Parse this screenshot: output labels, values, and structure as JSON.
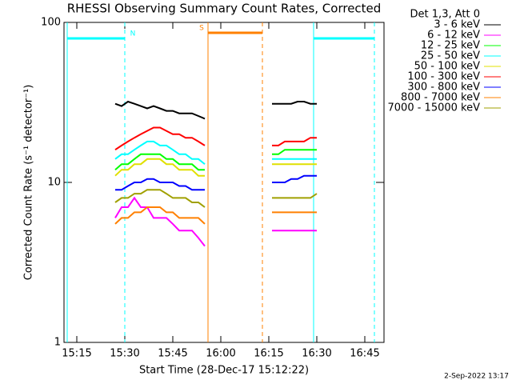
{
  "chart_data": {
    "type": "line",
    "title": "RHESSI Observing Summary Count Rates, Corrected",
    "xlabel": "Start Time (28-Dec-17 15:12:22)",
    "ylabel": "Corrected Count Rate (s⁻¹ detector⁻¹)",
    "legend_title": "Det 1,3, Att 0",
    "footnote": "2-Sep-2022 13:17",
    "log_y": true,
    "xlim": [
      "15:11",
      "16:51"
    ],
    "ylim": [
      1,
      100
    ],
    "xticks": [
      "15:15",
      "15:30",
      "15:45",
      "16:00",
      "16:15",
      "16:30",
      "16:45"
    ],
    "yticks": [
      1,
      10,
      100
    ],
    "intervals": [
      {
        "label": "N",
        "start": "15:12",
        "end": "15:30",
        "color": "#00ffff"
      },
      {
        "label": "S",
        "start": "15:56",
        "end": "16:13",
        "color": "#ff8000"
      },
      {
        "start": "16:29",
        "end": "16:48",
        "color": "#00ffff"
      }
    ],
    "x": [
      "15:27",
      "15:29",
      "15:31",
      "15:33",
      "15:35",
      "15:37",
      "15:39",
      "15:41",
      "15:43",
      "15:45",
      "15:47",
      "15:49",
      "15:51",
      "15:53",
      "15:55",
      "16:05",
      "16:16",
      "16:18",
      "16:20",
      "16:22",
      "16:24",
      "16:26",
      "16:28",
      "16:30"
    ],
    "series": [
      {
        "name": "3 - 6 keV",
        "color": "#000000",
        "values": [
          31,
          30,
          32,
          31,
          30,
          29,
          30,
          29,
          28,
          28,
          27,
          27,
          27,
          26,
          25,
          null,
          31,
          31,
          31,
          31,
          32,
          32,
          31,
          31
        ]
      },
      {
        "name": "6 - 12 keV",
        "color": "#ff00ff",
        "values": [
          6,
          7,
          7,
          8,
          7,
          7,
          6,
          6,
          6,
          5.5,
          5,
          5,
          5,
          4.5,
          4,
          null,
          5,
          5,
          5,
          5,
          5,
          5,
          5,
          5
        ]
      },
      {
        "name": "12 - 25 keV",
        "color": "#00ff00",
        "values": [
          12,
          13,
          13,
          14,
          15,
          15,
          15,
          15,
          14,
          14,
          13,
          13,
          13,
          12,
          12,
          null,
          15,
          15,
          16,
          16,
          16,
          16,
          16,
          16
        ]
      },
      {
        "name": "25 - 50 keV",
        "color": "#00ffff",
        "values": [
          14,
          15,
          15,
          16,
          17,
          18,
          18,
          17,
          17,
          16,
          15,
          15,
          14,
          14,
          13,
          null,
          14,
          14,
          14,
          14,
          14,
          14,
          14,
          14
        ]
      },
      {
        "name": "50 - 100 keV",
        "color": "#e0e000",
        "values": [
          11,
          12,
          12,
          13,
          13,
          14,
          14,
          14,
          13,
          13,
          12,
          12,
          12,
          11,
          11,
          null,
          13,
          13,
          13,
          13,
          13,
          13,
          13,
          13
        ]
      },
      {
        "name": "100 - 300 keV",
        "color": "#ff0000",
        "values": [
          16,
          17,
          18,
          19,
          20,
          21,
          22,
          22,
          21,
          20,
          20,
          19,
          19,
          18,
          17,
          null,
          17,
          17,
          18,
          18,
          18,
          18,
          19,
          19
        ]
      },
      {
        "name": "300 - 800 keV",
        "color": "#0000ff",
        "values": [
          9,
          9,
          9.5,
          10,
          10,
          10.5,
          10.5,
          10,
          10,
          10,
          9.5,
          9.5,
          9,
          9,
          9,
          null,
          10,
          10,
          10,
          10.5,
          10.5,
          11,
          11,
          11
        ]
      },
      {
        "name": "800 - 7000 keV",
        "color": "#ff8000",
        "values": [
          5.5,
          6,
          6,
          6.5,
          6.5,
          7,
          7,
          7,
          6.5,
          6.5,
          6,
          6,
          6,
          6,
          5.5,
          null,
          6.5,
          6.5,
          6.5,
          6.5,
          6.5,
          6.5,
          6.5,
          6.5
        ]
      },
      {
        "name": "7000 - 15000 keV",
        "color": "#a0a000",
        "values": [
          7.5,
          8,
          8,
          8.5,
          8.5,
          9,
          9,
          9,
          8.5,
          8,
          8,
          8,
          7.5,
          7.5,
          7,
          null,
          8,
          8,
          8,
          8,
          8,
          8,
          8,
          8.5
        ]
      }
    ]
  }
}
